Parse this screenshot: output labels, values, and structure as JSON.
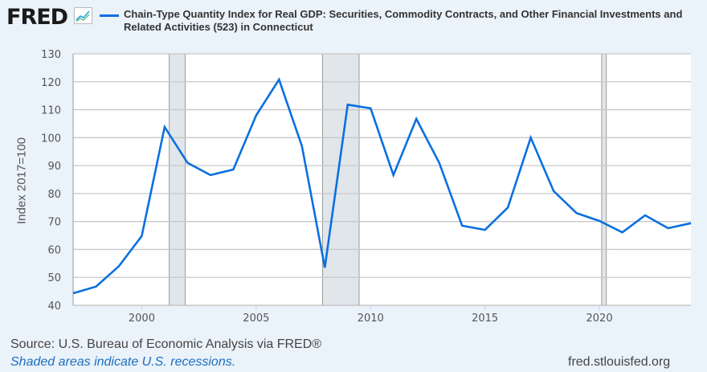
{
  "header": {
    "logo_text": "FRED",
    "logo_icon": "line-chart-icon",
    "title_line1": "Chain-Type Quantity Index for Real GDP: Securities, Commodity Contracts, and Other Financial Investments and",
    "title_line2": "Related Activities (523) in Connecticut"
  },
  "footer": {
    "source": "Source: U.S. Bureau of Economic Analysis via FRED®",
    "note": "Shaded areas indicate U.S. recessions.",
    "url": "fred.stlouisfed.org"
  },
  "colors": {
    "series": "#0b70e0",
    "recession": "#e1e6eb",
    "grid": "#c8c8c8",
    "background": "#eaf2fa"
  },
  "chart_data": {
    "type": "line",
    "title": "Chain-Type Quantity Index for Real GDP: Securities, Commodity Contracts, and Other Financial Investments and Related Activities (523) in Connecticut",
    "xlabel": "",
    "ylabel": "Index 2017=100",
    "xlim": [
      1997,
      2024
    ],
    "ylim": [
      40,
      130
    ],
    "yticks": [
      "40",
      "50",
      "60",
      "70",
      "80",
      "90",
      "100",
      "110",
      "120",
      "130"
    ],
    "xticks": [
      "2000",
      "2005",
      "2010",
      "2015",
      "2020"
    ],
    "grid": true,
    "recessions": [
      [
        2001.2,
        2001.9
      ],
      [
        2007.9,
        2009.5
      ],
      [
        2020.1,
        2020.3
      ]
    ],
    "series": [
      {
        "name": "Chain-Type Quantity Index for Real GDP: Securities, Commodity Contracts, and Other Financial Investments and Related Activities (523) in Connecticut",
        "x": [
          1997,
          1998,
          1999,
          2000,
          2001,
          2002,
          2003,
          2004,
          2005,
          2006,
          2007,
          2008,
          2009,
          2010,
          2011,
          2012,
          2013,
          2014,
          2015,
          2016,
          2017,
          2018,
          2019,
          2020,
          2021,
          2022,
          2023,
          2024
        ],
        "values": [
          44.3,
          46.7,
          54.0,
          64.8,
          103.8,
          91.0,
          86.6,
          88.6,
          108.0,
          120.8,
          97.0,
          53.5,
          111.8,
          110.5,
          86.6,
          106.7,
          91.0,
          68.5,
          67.0,
          75.0,
          100.0,
          80.9,
          73.0,
          70.2,
          66.1,
          72.2,
          67.6,
          69.4
        ]
      }
    ]
  }
}
